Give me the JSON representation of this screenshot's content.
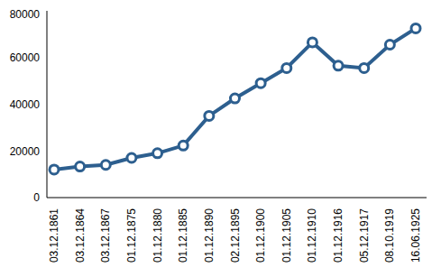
{
  "chart_data": {
    "type": "line",
    "categories": [
      "03.12.1861",
      "03.12.1864",
      "03.12.1867",
      "01.12.1875",
      "01.12.1880",
      "01.12.1885",
      "01.12.1890",
      "02.12.1895",
      "01.12.1900",
      "01.12.1905",
      "01.12.1910",
      "01.12.1916",
      "05.12.1917",
      "08.10.1919",
      "16.06.1925"
    ],
    "values": [
      12000,
      13300,
      14000,
      17000,
      19000,
      22300,
      35000,
      42500,
      49000,
      55500,
      66500,
      56500,
      55500,
      65500,
      72500
    ],
    "color": "#2d5f8f",
    "marker": "circle",
    "ylim": [
      0,
      80000
    ],
    "yticks": [
      0,
      20000,
      40000,
      60000,
      80000
    ],
    "grid": false
  }
}
